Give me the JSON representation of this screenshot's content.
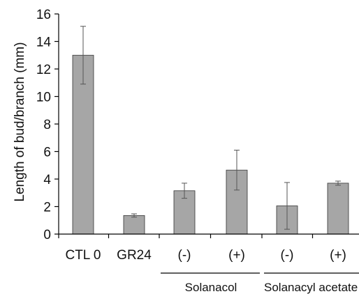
{
  "chart_data": {
    "type": "bar",
    "categories": [
      "CTL 0",
      "GR24",
      "(-)",
      "(+)",
      "(-)",
      "(+)"
    ],
    "values": [
      13.0,
      1.35,
      3.15,
      4.65,
      2.05,
      3.7
    ],
    "errors": [
      2.1,
      0.12,
      0.55,
      1.45,
      1.7,
      0.15
    ],
    "groups": [
      {
        "label": "Solanacol",
        "categories": [
          2,
          3
        ]
      },
      {
        "label": "Solanacyl acetate",
        "categories": [
          4,
          5
        ]
      }
    ],
    "title": "",
    "xlabel": "",
    "ylabel": "Length of bud/branch (mm)",
    "ylim": [
      0,
      16
    ],
    "yticks": [
      0,
      2,
      4,
      6,
      8,
      10,
      12,
      14,
      16
    ],
    "grid": false,
    "colors": {
      "bar": "#a6a6a6",
      "bar_edge": "#333333",
      "axis": "#000000"
    }
  }
}
